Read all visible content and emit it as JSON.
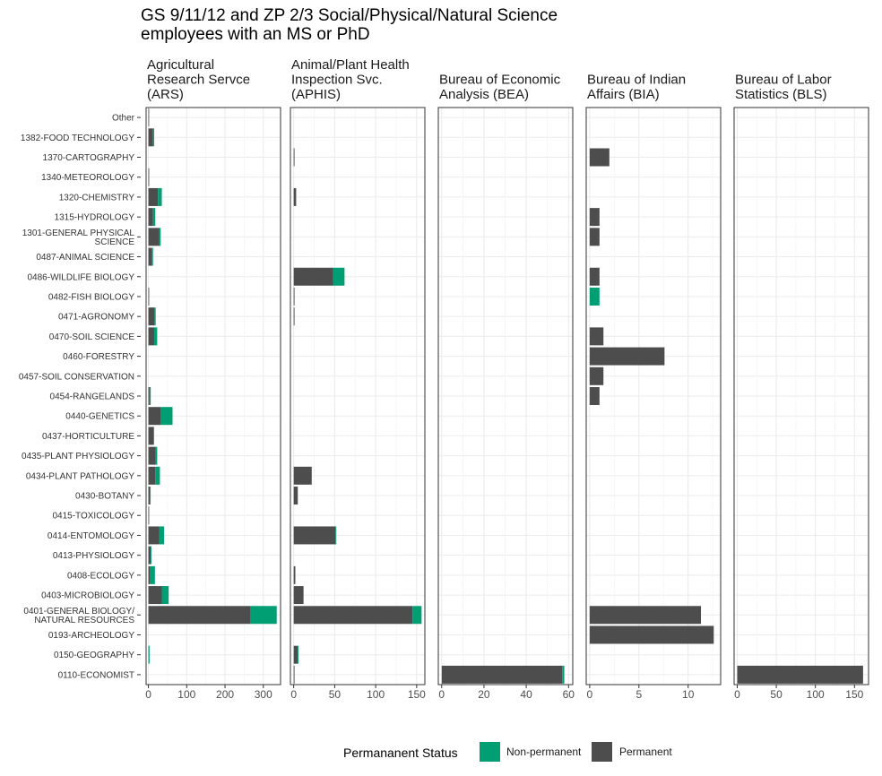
{
  "chart_data": {
    "type": "bar",
    "orientation": "horizontal",
    "stacked": true,
    "title": [
      "GS 9/11/12 and ZP 2/3 Social/Physical/Natural Science",
      "employees with an MS or PhD"
    ],
    "categories": [
      "Other",
      "1382-FOOD TECHNOLOGY",
      "1370-CARTOGRAPHY",
      "1340-METEOROLOGY",
      "1320-CHEMISTRY",
      "1315-HYDROLOGY",
      "1301-GENERAL PHYSICAL SCIENCE",
      "0487-ANIMAL SCIENCE",
      "0486-WILDLIFE BIOLOGY",
      "0482-FISH BIOLOGY",
      "0471-AGRONOMY",
      "0470-SOIL SCIENCE",
      "0460-FORESTRY",
      "0457-SOIL CONSERVATION",
      "0454-RANGELANDS",
      "0440-GENETICS",
      "0437-HORTICULTURE",
      "0435-PLANT PHYSIOLOGY",
      "0434-PLANT PATHOLOGY",
      "0430-BOTANY",
      "0415-TOXICOLOGY",
      "0414-ENTOMOLOGY",
      "0413-PHYSIOLOGY",
      "0408-ECOLOGY",
      "0403-MICROBIOLOGY",
      "0401-GENERAL BIOLOGY/ NATURAL RESOURCES",
      "0193-ARCHEOLOGY",
      "0150-GEOGRAPHY",
      "0110-ECONOMIST"
    ],
    "category_display": [
      [
        "Other"
      ],
      [
        "1382-FOOD TECHNOLOGY"
      ],
      [
        "1370-CARTOGRAPHY"
      ],
      [
        "1340-METEOROLOGY"
      ],
      [
        "1320-CHEMISTRY"
      ],
      [
        "1315-HYDROLOGY"
      ],
      [
        "1301-GENERAL PHYSICAL",
        "SCIENCE"
      ],
      [
        "0487-ANIMAL SCIENCE"
      ],
      [
        "0486-WILDLIFE BIOLOGY"
      ],
      [
        "0482-FISH BIOLOGY"
      ],
      [
        "0471-AGRONOMY"
      ],
      [
        "0470-SOIL SCIENCE"
      ],
      [
        "0460-FORESTRY"
      ],
      [
        "0457-SOIL CONSERVATION"
      ],
      [
        "0454-RANGELANDS"
      ],
      [
        "0440-GENETICS"
      ],
      [
        "0437-HORTICULTURE"
      ],
      [
        "0435-PLANT PHYSIOLOGY"
      ],
      [
        "0434-PLANT PATHOLOGY"
      ],
      [
        "0430-BOTANY"
      ],
      [
        "0415-TOXICOLOGY"
      ],
      [
        "0414-ENTOMOLOGY"
      ],
      [
        "0413-PHYSIOLOGY"
      ],
      [
        "0408-ECOLOGY"
      ],
      [
        "0403-MICROBIOLOGY"
      ],
      [
        "0401-GENERAL BIOLOGY/",
        "NATURAL RESOURCES"
      ],
      [
        "0193-ARCHEOLOGY"
      ],
      [
        "0150-GEOGRAPHY"
      ],
      [
        "0110-ECONOMIST"
      ]
    ],
    "legend": {
      "title": "Permananent Status",
      "position": "bottom",
      "entries": [
        {
          "name": "Non-permanent",
          "color": "#009E73"
        },
        {
          "name": "Permanent",
          "color": "#4D4D4D"
        }
      ]
    },
    "grid": true,
    "facets": [
      {
        "label": [
          "Agricultural",
          "Research Servce",
          "(ARS)"
        ],
        "xlim": [
          -6,
          345
        ],
        "ticks": [
          0,
          100,
          200,
          300
        ],
        "series": [
          {
            "name": "Permanent",
            "values": [
              1,
              12,
              0,
              2,
              25,
              12,
              28,
              10,
              0,
              2,
              16,
              15,
              0,
              0,
              3,
              33,
              13,
              19,
              18,
              4,
              2,
              28,
              6,
              5,
              35,
              267,
              0,
              0,
              0
            ]
          },
          {
            "name": "Non-permanent",
            "values": [
              0,
              3,
              0,
              0,
              10,
              6,
              4,
              2,
              0,
              0,
              3,
              8,
              0,
              0,
              3,
              30,
              2,
              4,
              12,
              1,
              0,
              13,
              2,
              12,
              18,
              68,
              0,
              3,
              0
            ]
          }
        ]
      },
      {
        "label": [
          "Animal/Plant Health",
          "Inspection Svc.",
          "(APHIS)"
        ],
        "xlim": [
          -4,
          160
        ],
        "ticks": [
          0,
          50,
          100,
          150
        ],
        "series": [
          {
            "name": "Permanent",
            "values": [
              0,
              0,
              1,
              0,
              3,
              0,
              0,
              0,
              48,
              1,
              1,
              0,
              0,
              0,
              0,
              0,
              0,
              0,
              22,
              5,
              0,
              51,
              0,
              2,
              12,
              145,
              0,
              5,
              1
            ]
          },
          {
            "name": "Non-permanent",
            "values": [
              0,
              0,
              0,
              0,
              0,
              0,
              0,
              0,
              14,
              0,
              0,
              0,
              0,
              0,
              0,
              0,
              0,
              0,
              0,
              0,
              0,
              1,
              0,
              0,
              0,
              11,
              0,
              1,
              0
            ]
          }
        ]
      },
      {
        "label": [
          "Bureau of Economic",
          "Analysis (BEA)"
        ],
        "xlim": [
          -1.6,
          62
        ],
        "ticks": [
          0,
          20,
          40,
          60
        ],
        "series": [
          {
            "name": "Permanent",
            "values": [
              0,
              0,
              0,
              0,
              0,
              0,
              0,
              0,
              0,
              0,
              0,
              0,
              0,
              0,
              0,
              0,
              0,
              0,
              0,
              0,
              0,
              0,
              0,
              0,
              0,
              0,
              0,
              0,
              57
            ]
          },
          {
            "name": "Non-permanent",
            "values": [
              0,
              0,
              0,
              0,
              0,
              0,
              0,
              0,
              0,
              0,
              0,
              0,
              0,
              0,
              0,
              0,
              0,
              0,
              0,
              0,
              0,
              0,
              0,
              0,
              0,
              0,
              0,
              0,
              1
            ]
          }
        ]
      },
      {
        "label": [
          "Bureau of Indian",
          "Affairs (BIA)"
        ],
        "xlim": [
          -0.35,
          13.3
        ],
        "ticks": [
          0,
          5,
          10
        ],
        "series": [
          {
            "name": "Permanent",
            "values": [
              0,
              0,
              2,
              0,
              0,
              1,
              1,
              0,
              1,
              0,
              0,
              1.4,
              7.6,
              1.4,
              1,
              0,
              0,
              0,
              0,
              0,
              0,
              0,
              0,
              0,
              0,
              11.3,
              12.6,
              0,
              0
            ]
          },
          {
            "name": "Non-permanent",
            "values": [
              0,
              0,
              0,
              0,
              0,
              0,
              0,
              0,
              0,
              1,
              0,
              0,
              0,
              0,
              0,
              0,
              0,
              0,
              0,
              0,
              0,
              0,
              0,
              0,
              0,
              0,
              0,
              0,
              0
            ]
          }
        ]
      },
      {
        "label": [
          "Bureau of Labor",
          "Statistics (BLS)"
        ],
        "xlim": [
          -4,
          168
        ],
        "ticks": [
          0,
          50,
          100,
          150
        ],
        "series": [
          {
            "name": "Permanent",
            "values": [
              0,
              0,
              0,
              0,
              0,
              0,
              0,
              0,
              0,
              0,
              0,
              0,
              0,
              0,
              0,
              0,
              0,
              0,
              0,
              0,
              0,
              0,
              0,
              0,
              0,
              0,
              0,
              0,
              161
            ]
          },
          {
            "name": "Non-permanent",
            "values": [
              0,
              0,
              0,
              0,
              0,
              0,
              0,
              0,
              0,
              0,
              0,
              0,
              0,
              0,
              0,
              0,
              0,
              0,
              0,
              0,
              0,
              0,
              0,
              0,
              0,
              0,
              0,
              0,
              0
            ]
          }
        ]
      }
    ]
  }
}
